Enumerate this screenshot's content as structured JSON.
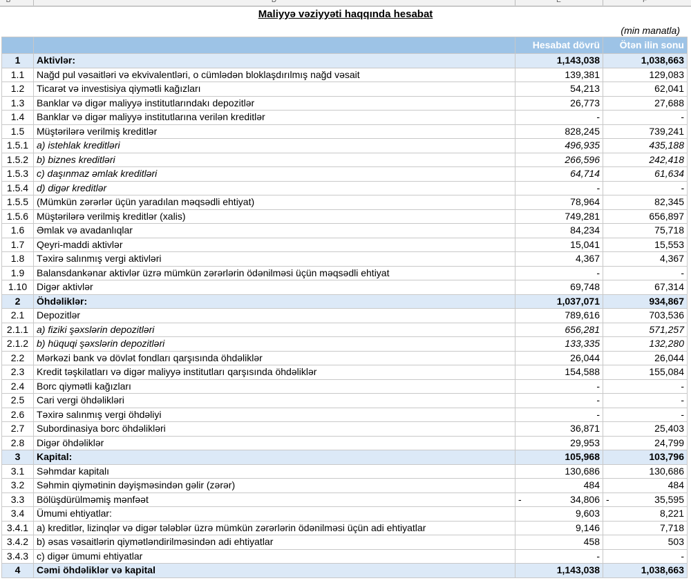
{
  "column_letters": [
    "B",
    "D",
    "E",
    "F"
  ],
  "title": "Maliyyə vəziyyəti haqqında hesabat",
  "unit": "(min manatla)",
  "headers": {
    "current": "Hesabat dövrü",
    "previous": "Ötən ilin sonu"
  },
  "rows": [
    {
      "n": "1",
      "d": "Aktivlər:",
      "c": "1,143,038",
      "p": "1,038,663",
      "t": "sec"
    },
    {
      "n": "1.1",
      "d": "Nağd pul vəsaitləri və  ekvivalentləri, o cümlədən bloklaşdırılmış nağd vəsait",
      "c": "139,381",
      "p": "129,083"
    },
    {
      "n": "1.2",
      "d": "Ticarət və investisiya qiymətli kağızları",
      "c": "54,213",
      "p": "62,041"
    },
    {
      "n": "1.3",
      "d": "Banklar və digər maliyyə institutlarındakı depozitlər",
      "c": "26,773",
      "p": "27,688"
    },
    {
      "n": "1.4",
      "d": "Banklar və digər maliyyə institutlarına verilən kreditlər",
      "c": "-",
      "p": "-"
    },
    {
      "n": "1.5",
      "d": "Müştərilərə verilmiş kreditlər",
      "c": "828,245",
      "p": "739,241"
    },
    {
      "n": "1.5.1",
      "d": "a) istehlak kreditləri",
      "c": "496,935",
      "p": "435,188",
      "t": "it"
    },
    {
      "n": "1.5.2",
      "d": "b) biznes kreditləri",
      "c": "266,596",
      "p": "242,418",
      "t": "it"
    },
    {
      "n": "1.5.3",
      "d": "c) daşınmaz əmlak kreditləri",
      "c": "64,714",
      "p": "61,634",
      "t": "it"
    },
    {
      "n": "1.5.4",
      "d": "d) digər kreditlər",
      "c": "-",
      "p": "-",
      "t": "it"
    },
    {
      "n": "1.5.5",
      "d": "(Mümkün zərərlər üçün yaradılan məqsədli ehtiyat)",
      "c": "78,964",
      "p": "82,345"
    },
    {
      "n": "1.5.6",
      "d": "Müştərilərə verilmiş kreditlər (xalis)",
      "c": "749,281",
      "p": "656,897"
    },
    {
      "n": "1.6",
      "d": "Əmlak və avadanlıqlar",
      "c": "84,234",
      "p": "75,718"
    },
    {
      "n": "1.7",
      "d": "Qeyri-maddi aktivlər",
      "c": "15,041",
      "p": "15,553"
    },
    {
      "n": "1.8",
      "d": "Təxirə salınmış vergi aktivləri",
      "c": "4,367",
      "p": "4,367"
    },
    {
      "n": "1.9",
      "d": "Balansdankənar aktivlər üzrə mümkün zərərlərin ödənilməsi üçün məqsədli ehtiyat",
      "c": "-",
      "p": "-"
    },
    {
      "n": "1.10",
      "d": "Digər aktivlər",
      "c": "69,748",
      "p": "67,314"
    },
    {
      "n": "2",
      "d": "Öhdəliklər:",
      "c": "1,037,071",
      "p": "934,867",
      "t": "sec"
    },
    {
      "n": "2.1",
      "d": "Depozitlər",
      "c": "789,616",
      "p": "703,536"
    },
    {
      "n": "2.1.1",
      "d": "a) fiziki şəxslərin depozitləri",
      "c": "656,281",
      "p": "571,257",
      "t": "it"
    },
    {
      "n": "2.1.2",
      "d": "b) hüquqi şəxslərin depozitləri",
      "c": "133,335",
      "p": "132,280",
      "t": "it"
    },
    {
      "n": "2.2",
      "d": "Mərkəzi bank və dövlət fondları qarşısında öhdəliklər",
      "c": "26,044",
      "p": "26,044"
    },
    {
      "n": "2.3",
      "d": "Kredit təşkilatları və digər maliyyə institutları qarşısında öhdəliklər",
      "c": "154,588",
      "p": "155,084"
    },
    {
      "n": "2.4",
      "d": "Borc qiymətli kağızları",
      "c": "-",
      "p": "-"
    },
    {
      "n": "2.5",
      "d": "Cari vergi öhdəlikləri",
      "c": "-",
      "p": "-"
    },
    {
      "n": "2.6",
      "d": "Təxirə salınmış vergi öhdəliyi",
      "c": "-",
      "p": "-"
    },
    {
      "n": "2.7",
      "d": "Subordinasiya borc öhdəlikləri",
      "c": "36,871",
      "p": "25,403"
    },
    {
      "n": "2.8",
      "d": "Digər öhdəliklər",
      "c": "29,953",
      "p": "24,799"
    },
    {
      "n": "3",
      "d": "Kapital:",
      "c": "105,968",
      "p": "103,796",
      "t": "sec"
    },
    {
      "n": "3.1",
      "d": "Səhmdar kapitalı",
      "c": "130,686",
      "p": "130,686"
    },
    {
      "n": "3.2",
      "d": "Səhmin qiymətinin dəyişməsindən gəlir (zərər)",
      "c": "484",
      "p": "484"
    },
    {
      "n": "3.3",
      "d": "Bölüşdürülməmiş mənfəət",
      "c": "34,806",
      "p": "35,595",
      "neg": "-"
    },
    {
      "n": "3.4",
      "d": "Ümumi ehtiyatlar:",
      "c": "9,603",
      "p": "8,221"
    },
    {
      "n": "3.4.1",
      "d": "a) kreditlər, lizinqlər və digər tələblər üzrə mümkün zərərlərin ödənilməsi üçün adi ehtiyatlar",
      "c": "9,146",
      "p": "7,718"
    },
    {
      "n": "3.4.2",
      "d": "b) əsas vəsaitlərin qiymətləndirilməsindən adi ehtiyatlar",
      "c": "458",
      "p": "503"
    },
    {
      "n": "3.4.3",
      "d": "c) digər ümumi ehtiyatlar",
      "c": "-",
      "p": "-"
    },
    {
      "n": "4",
      "d": "Cəmi öhdəliklər və kapital",
      "c": "1,143,038",
      "p": "1,038,663",
      "t": "sec"
    }
  ]
}
